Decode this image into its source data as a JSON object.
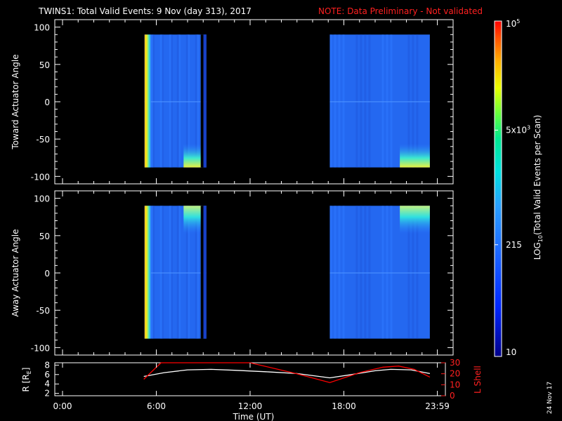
{
  "header": {
    "title": "TWINS1: Total Valid Events:  9 Nov (day 313), 2017",
    "note": "NOTE: Data Preliminary - Not validated"
  },
  "footer": {
    "date_stamp": "24 Nov 17"
  },
  "colors": {
    "note": "#ff2020",
    "frame": "#ffffff",
    "background": "#000000",
    "lshell": "#ff0000",
    "radius": "#ffffff"
  },
  "chart_data": [
    {
      "type": "heatmap",
      "ylabel": "Toward Actuator Angle",
      "ylim": [
        -110,
        110
      ],
      "yticks": [
        -100,
        -50,
        0,
        50,
        100
      ],
      "xlim": [
        0,
        24
      ],
      "data_blocks": [
        {
          "x": [
            5.25,
            9.2
          ],
          "y": [
            -88,
            90
          ],
          "level": "low",
          "bright_edge": "x≈5.3–5.5 (high)",
          "hot_spot": "x≈8–9.2, y≈-85 (medium-high)"
        },
        {
          "x": [
            17.1,
            23.5
          ],
          "y": [
            -88,
            90
          ],
          "level": "low",
          "hot_spot": "x≈22.5–23.5, y≈-85 (medium-high)"
        }
      ]
    },
    {
      "type": "heatmap",
      "ylabel": "Away Actuator Angle",
      "ylim": [
        -110,
        110
      ],
      "yticks": [
        -100,
        -50,
        0,
        50,
        100
      ],
      "xlim": [
        0,
        24
      ],
      "data_blocks": [
        {
          "x": [
            5.25,
            9.2
          ],
          "y": [
            -88,
            90
          ],
          "level": "low",
          "bright_edge": "x≈5.3–5.5 (high)",
          "hot_spot": "x≈7.5–9, y≈88 (medium-high)"
        },
        {
          "x": [
            17.1,
            23.5
          ],
          "y": [
            -88,
            90
          ],
          "level": "low",
          "hot_spot": "x≈21–23.5, y≈88 (medium-high)"
        }
      ]
    },
    {
      "type": "line",
      "xlabel": "Time (UT)",
      "xticks": [
        "0:00",
        "6:00",
        "12:00",
        "18:00",
        "23:59"
      ],
      "xtick_values": [
        0,
        6,
        12,
        18,
        23.98
      ],
      "ylabel": "R [R",
      "ylabel_sub": "E",
      "ylabel_close": "]",
      "ylim": [
        1.5,
        8.5
      ],
      "yticks": [
        2,
        4,
        6,
        8
      ],
      "y2label": "L Shell",
      "y2lim": [
        0,
        30
      ],
      "y2ticks": [
        0,
        10,
        20,
        30
      ],
      "series": [
        {
          "axis": "left",
          "x": [
            5.2,
            6.5,
            8,
            9.5,
            11,
            13,
            15,
            17.1,
            18.5,
            20,
            21,
            22.3,
            23.5
          ],
          "y": [
            5.6,
            6.4,
            7.0,
            7.1,
            6.9,
            6.6,
            6.2,
            5.3,
            6.0,
            6.8,
            7.1,
            7.0,
            6.2
          ]
        },
        {
          "axis": "right",
          "x": [
            5.2,
            6.3,
            11.3,
            12,
            15,
            17.1,
            19,
            20.5,
            21.5,
            22.5,
            23.5
          ],
          "y": [
            15,
            30,
            30,
            30,
            20,
            12,
            21,
            26,
            27,
            24,
            17
          ]
        }
      ]
    }
  ],
  "colorbar": {
    "label": "LOG  (Total Valid Events per Scan)",
    "label_sub": "10",
    "ticks": [
      {
        "text": "10",
        "value": 10
      },
      {
        "text": "215",
        "value": 215
      },
      {
        "text": "5x10",
        "sup": "3",
        "value": 5000
      },
      {
        "text": "10",
        "sup": "5",
        "value": 100000
      }
    ]
  }
}
